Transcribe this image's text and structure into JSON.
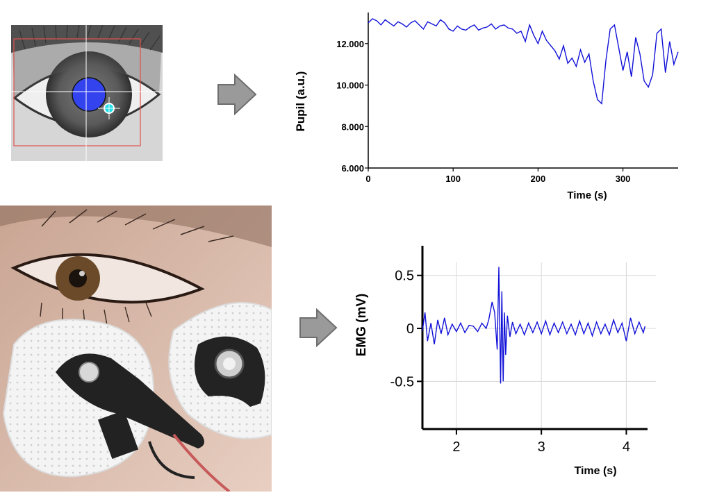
{
  "images": {
    "eye_tracker": "eye-tracker-camera-view",
    "emg_photo": "eye-with-emg-electrodes"
  },
  "colors": {
    "trace": "#1010d8",
    "pupil_detect": "#3344ee",
    "glint": "#22e0e8",
    "roi_box": "#e05050",
    "arrow_fill": "#9a9a9a",
    "arrow_stroke": "#6e6e6e",
    "grid": "#d8d8d8"
  },
  "chart_data": [
    {
      "type": "line",
      "ylabel": "Pupil (a.u.)",
      "xlabel": "Time (s)",
      "xlim": [
        0,
        365
      ],
      "ylim": [
        6000,
        13500
      ],
      "xticks": [
        0,
        100,
        200,
        300
      ],
      "yticks": [
        6000,
        8000,
        10000,
        12000
      ],
      "ytick_labels": [
        "6.000",
        "8.000",
        "10.000",
        "12.000"
      ],
      "grid": false,
      "series": [
        {
          "x": [
            0,
            5,
            10,
            15,
            20,
            25,
            30,
            35,
            40,
            45,
            50,
            55,
            60,
            65,
            70,
            75,
            80,
            85,
            90,
            95,
            100,
            105,
            110,
            115,
            120,
            125,
            130,
            135,
            140,
            145,
            150,
            155,
            160,
            165,
            170,
            175,
            180,
            185,
            190,
            195,
            200,
            205,
            210,
            215,
            220,
            225,
            230,
            235,
            240,
            245,
            250,
            255,
            260,
            265,
            270,
            275,
            280,
            285,
            290,
            295,
            300,
            305,
            310,
            315,
            320,
            325,
            330,
            335,
            340,
            345,
            350,
            355,
            360,
            365
          ],
          "y": [
            13000,
            13200,
            13100,
            12900,
            13150,
            13000,
            12850,
            13050,
            12950,
            12800,
            13000,
            13100,
            12900,
            12700,
            13050,
            12950,
            12850,
            13150,
            13000,
            12700,
            12600,
            12850,
            12700,
            12650,
            12800,
            12900,
            12650,
            12750,
            12800,
            12950,
            12700,
            12850,
            12900,
            12750,
            12700,
            12500,
            12600,
            12100,
            12900,
            12400,
            12000,
            12600,
            12150,
            11900,
            11650,
            11250,
            11900,
            11050,
            11300,
            10900,
            11700,
            11100,
            11500,
            10200,
            9300,
            9100,
            11200,
            12700,
            12900,
            11800,
            10700,
            11600,
            10400,
            12300,
            11500,
            10200,
            9900,
            10500,
            12500,
            12700,
            10600,
            12100,
            11000,
            11600
          ]
        }
      ]
    },
    {
      "type": "line",
      "ylabel": "EMG (mV)",
      "xlabel": "Time (s)",
      "xlim": [
        1.6,
        4.25
      ],
      "ylim": [
        -0.95,
        0.78
      ],
      "xticks": [
        2,
        3,
        4
      ],
      "yticks": [
        -0.5,
        0,
        0.5
      ],
      "ytick_labels": [
        "-0.5",
        "0",
        "0.5"
      ],
      "grid": true,
      "series": [
        {
          "x": [
            1.6,
            1.63,
            1.66,
            1.7,
            1.74,
            1.78,
            1.82,
            1.86,
            1.9,
            1.95,
            2.0,
            2.05,
            2.1,
            2.15,
            2.2,
            2.25,
            2.3,
            2.35,
            2.38,
            2.42,
            2.45,
            2.48,
            2.5,
            2.52,
            2.535,
            2.55,
            2.565,
            2.58,
            2.6,
            2.63,
            2.66,
            2.7,
            2.75,
            2.8,
            2.85,
            2.9,
            2.95,
            3.0,
            3.05,
            3.1,
            3.15,
            3.2,
            3.25,
            3.3,
            3.35,
            3.4,
            3.45,
            3.5,
            3.55,
            3.6,
            3.65,
            3.7,
            3.75,
            3.8,
            3.85,
            3.9,
            3.95,
            4.0,
            4.05,
            4.1,
            4.15,
            4.2,
            4.22
          ],
          "y": [
            -0.02,
            0.15,
            -0.12,
            0.05,
            -0.15,
            0.08,
            -0.05,
            0.1,
            -0.06,
            0.04,
            -0.03,
            0.05,
            -0.04,
            0.03,
            0.02,
            -0.03,
            0.05,
            0.0,
            0.08,
            0.25,
            0.15,
            -0.2,
            0.58,
            -0.52,
            0.35,
            -0.5,
            0.15,
            -0.25,
            0.12,
            -0.08,
            0.06,
            -0.05,
            0.04,
            -0.06,
            0.05,
            -0.04,
            0.06,
            -0.05,
            0.07,
            -0.06,
            0.05,
            -0.04,
            0.06,
            -0.05,
            0.04,
            -0.06,
            0.07,
            -0.05,
            0.05,
            -0.07,
            0.06,
            -0.05,
            0.04,
            -0.06,
            0.08,
            -0.04,
            0.05,
            -0.12,
            0.1,
            -0.05,
            0.06,
            -0.04,
            0.02
          ]
        }
      ]
    }
  ]
}
